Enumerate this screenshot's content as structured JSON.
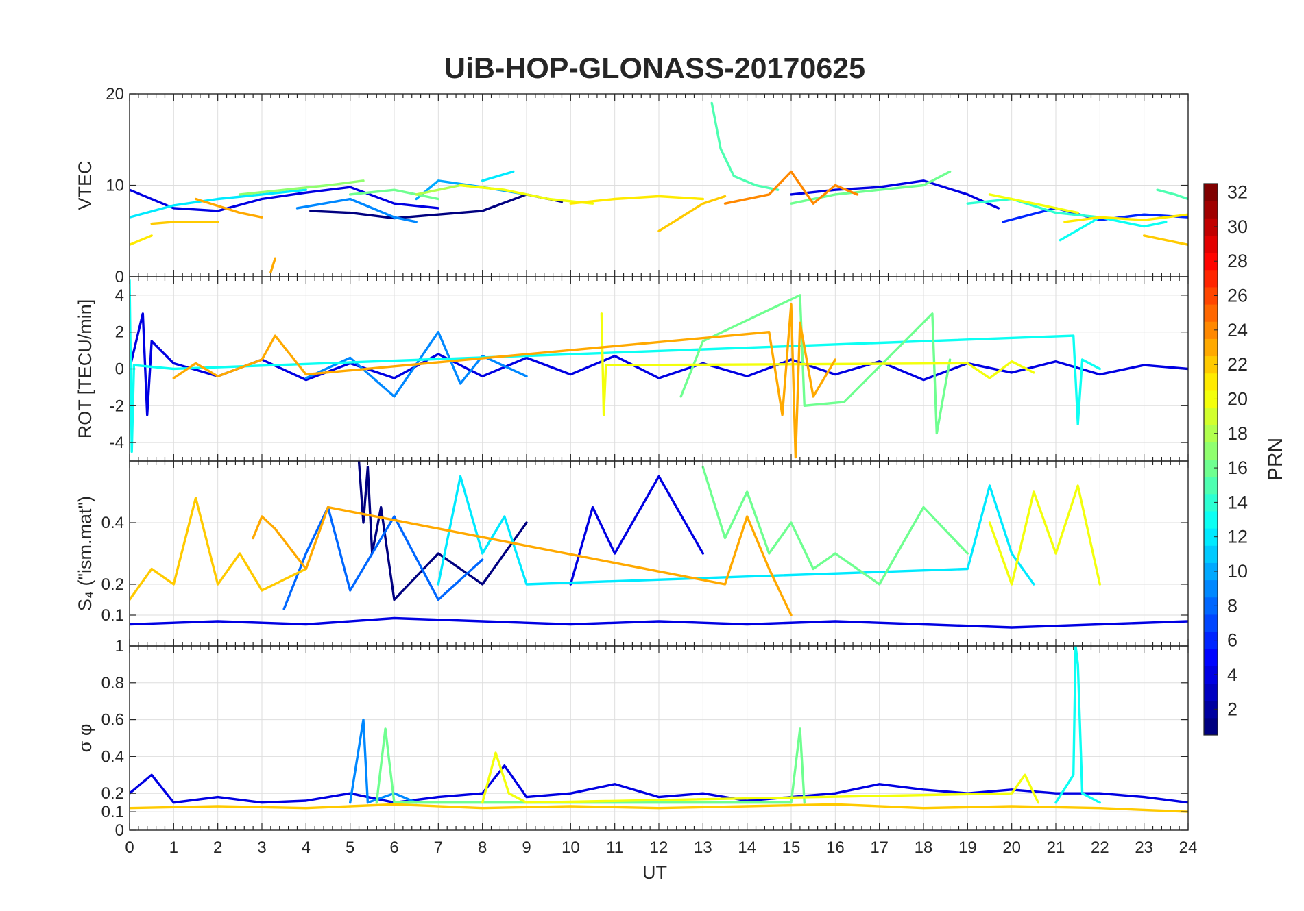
{
  "chart_data": {
    "type": "line",
    "title": "UiB-HOP-GLONASS-20170625",
    "xlabel": "UT",
    "xlim": [
      0,
      24
    ],
    "xticks": [
      0,
      1,
      2,
      3,
      4,
      5,
      6,
      7,
      8,
      9,
      10,
      11,
      12,
      13,
      14,
      15,
      16,
      17,
      18,
      19,
      20,
      21,
      22,
      23,
      24
    ],
    "colorbar": {
      "label": "PRN",
      "colormap": "jet",
      "range": [
        1,
        32
      ],
      "ticks": [
        2,
        4,
        6,
        8,
        10,
        12,
        14,
        16,
        18,
        20,
        22,
        24,
        26,
        28,
        30,
        32
      ]
    },
    "panels": [
      {
        "id": "vtec",
        "ylabel": "VTEC",
        "ylim": [
          0,
          20
        ],
        "yticks": [
          0,
          10,
          20
        ],
        "series": [
          {
            "prn": 1,
            "x": [
              4.1,
              5,
              6,
              7,
              8,
              9,
              9.8
            ],
            "y": [
              7.2,
              7.0,
              6.4,
              6.8,
              7.2,
              9.0,
              8.2
            ]
          },
          {
            "prn": 4,
            "x": [
              0,
              1,
              2,
              3,
              4,
              5,
              6,
              7
            ],
            "y": [
              9.5,
              7.5,
              7.2,
              8.5,
              9.2,
              9.8,
              8.0,
              7.5
            ]
          },
          {
            "prn": 4,
            "x": [
              15,
              16,
              17,
              18,
              19,
              19.7
            ],
            "y": [
              9.0,
              9.5,
              9.8,
              10.5,
              9.0,
              7.5
            ]
          },
          {
            "prn": 6,
            "x": [
              19.8,
              21,
              22,
              23,
              24
            ],
            "y": [
              6.0,
              7.5,
              6.2,
              6.8,
              6.5
            ]
          },
          {
            "prn": 9,
            "x": [
              3.8,
              5,
              6,
              6.5
            ],
            "y": [
              7.5,
              8.5,
              6.5,
              6.0
            ]
          },
          {
            "prn": 10,
            "x": [
              6.5,
              7,
              8,
              9
            ],
            "y": [
              8.5,
              10.5,
              9.8,
              9.0
            ]
          },
          {
            "prn": 12,
            "x": [
              0,
              1,
              2,
              3,
              4
            ],
            "y": [
              6.5,
              7.8,
              8.5,
              9.0,
              9.5
            ]
          },
          {
            "prn": 12,
            "x": [
              8,
              8.7
            ],
            "y": [
              10.5,
              11.5
            ]
          },
          {
            "prn": 13,
            "x": [
              21.1,
              22,
              23,
              23.5
            ],
            "y": [
              4.0,
              6.5,
              5.5,
              6.0
            ]
          },
          {
            "prn": 14,
            "x": [
              19.0,
              20,
              21,
              22
            ],
            "y": [
              8.0,
              8.5,
              7.0,
              6.5
            ]
          },
          {
            "prn": 15,
            "x": [
              13.2,
              13.4,
              13.7,
              14.2,
              14.7
            ],
            "y": [
              19.0,
              14.0,
              11.0,
              10.0,
              9.5
            ]
          },
          {
            "prn": 15,
            "x": [
              23.3,
              23.7,
              24
            ],
            "y": [
              9.5,
              9.0,
              8.5
            ]
          },
          {
            "prn": 16,
            "x": [
              5,
              6,
              7
            ],
            "y": [
              9.0,
              9.5,
              8.5
            ]
          },
          {
            "prn": 16,
            "x": [
              15,
              16,
              17,
              18,
              18.6
            ],
            "y": [
              8.0,
              9.0,
              9.5,
              10.0,
              11.5
            ]
          },
          {
            "prn": 17,
            "x": [
              2.5,
              3.5,
              4.5,
              5.3
            ],
            "y": [
              9.0,
              9.5,
              10.0,
              10.5
            ]
          },
          {
            "prn": 18,
            "x": [
              6.5,
              7.5,
              8.5
            ],
            "y": [
              9.0,
              10.0,
              9.5
            ]
          },
          {
            "prn": 20,
            "x": [
              7.5,
              8.5,
              9.5,
              10.5
            ],
            "y": [
              10.0,
              9.5,
              8.5,
              8.0
            ]
          },
          {
            "prn": 20,
            "x": [
              19.5,
              20.5,
              21.5
            ],
            "y": [
              9.0,
              8.0,
              7.0
            ]
          },
          {
            "prn": 21,
            "x": [
              0,
              0.5
            ],
            "y": [
              3.5,
              4.5
            ]
          },
          {
            "prn": 21,
            "x": [
              10,
              11,
              12,
              13
            ],
            "y": [
              8.0,
              8.5,
              8.8,
              8.5
            ]
          },
          {
            "prn": 21,
            "x": [
              21.2,
              22,
              23,
              24
            ],
            "y": [
              6.0,
              6.5,
              6.2,
              6.8
            ]
          },
          {
            "prn": 22,
            "x": [
              0.5,
              1,
              2
            ],
            "y": [
              5.8,
              6.0,
              6.0
            ]
          },
          {
            "prn": 22,
            "x": [
              12,
              13,
              13.5
            ],
            "y": [
              5.0,
              8.0,
              8.8
            ]
          },
          {
            "prn": 22,
            "x": [
              23,
              24
            ],
            "y": [
              4.5,
              3.5
            ]
          },
          {
            "prn": 23,
            "x": [
              3.2,
              3.3
            ],
            "y": [
              0.5,
              2.0
            ]
          },
          {
            "prn": 23,
            "x": [
              1.5,
              2.5,
              3
            ],
            "y": [
              8.5,
              7.0,
              6.5
            ]
          },
          {
            "prn": 24,
            "x": [
              13.5,
              14.5,
              15,
              15.5,
              16,
              16.5
            ],
            "y": [
              8.0,
              9.0,
              11.5,
              8.0,
              10.0,
              9.0
            ]
          }
        ]
      },
      {
        "id": "rot",
        "ylabel": "ROT [TECU/min]",
        "ylim": [
          -5,
          5
        ],
        "yticks": [
          -4,
          -2,
          0,
          2,
          4
        ],
        "series": [
          {
            "prn": 4,
            "x": [
              0,
              0.3,
              0.4,
              0.5,
              1,
              2,
              3,
              4,
              5,
              6,
              7,
              8,
              9,
              10,
              11,
              12,
              13,
              14,
              15,
              16,
              17,
              18,
              19,
              20,
              21,
              22,
              23,
              24
            ],
            "y": [
              0,
              3.0,
              -2.5,
              1.5,
              0.3,
              -0.4,
              0.5,
              -0.6,
              0.3,
              -0.5,
              0.8,
              -0.4,
              0.6,
              -0.3,
              0.7,
              -0.5,
              0.3,
              -0.4,
              0.5,
              -0.3,
              0.4,
              -0.6,
              0.3,
              -0.2,
              0.4,
              -0.3,
              0.2,
              0
            ]
          },
          {
            "prn": 9,
            "x": [
              4,
              5,
              6,
              7,
              7.5,
              8,
              9
            ],
            "y": [
              -0.5,
              0.6,
              -1.5,
              2.0,
              -0.8,
              0.7,
              -0.4
            ]
          },
          {
            "prn": 13,
            "x": [
              0,
              0.05,
              0.1,
              1,
              21.4,
              21.5,
              21.6,
              22
            ],
            "y": [
              4.8,
              -4.5,
              0.2,
              0,
              1.8,
              -3.0,
              0.5,
              0
            ]
          },
          {
            "prn": 16,
            "x": [
              12.5,
              13,
              15.2,
              15.3,
              16.2,
              18.2,
              18.3,
              18.6
            ],
            "y": [
              -1.5,
              1.5,
              4.0,
              -2.0,
              -1.8,
              3.0,
              -3.5,
              0.5
            ]
          },
          {
            "prn": 20,
            "x": [
              10.7,
              10.75,
              10.8,
              19,
              19.5,
              20,
              20.5
            ],
            "y": [
              3.0,
              -2.5,
              0.2,
              0.3,
              -0.5,
              0.4,
              -0.2
            ]
          },
          {
            "prn": 23,
            "x": [
              1,
              1.5,
              2,
              3,
              3.3,
              4,
              14.5,
              14.8,
              15,
              15.1,
              15.2,
              15.5,
              16
            ],
            "y": [
              -0.5,
              0.3,
              -0.4,
              0.5,
              1.8,
              -0.3,
              2.0,
              -2.5,
              3.5,
              -4.8,
              2.5,
              -1.5,
              0.5
            ]
          }
        ]
      },
      {
        "id": "s4",
        "ylabel": "S₄ (\"ism.mat\")",
        "ylim": [
          0,
          0.6
        ],
        "yticks": [
          0.1,
          0.2,
          0.4
        ],
        "series": [
          {
            "prn": 1,
            "x": [
              5.2,
              5.3,
              5.4,
              5.5,
              5.7,
              6,
              7,
              8,
              9
            ],
            "y": [
              0.6,
              0.4,
              0.58,
              0.3,
              0.45,
              0.15,
              0.3,
              0.2,
              0.4
            ]
          },
          {
            "prn": 4,
            "x": [
              10,
              10.5,
              11,
              12,
              13
            ],
            "y": [
              0.2,
              0.45,
              0.3,
              0.55,
              0.3
            ]
          },
          {
            "prn": 8,
            "x": [
              3.5,
              4,
              4.5,
              5,
              6,
              7,
              8
            ],
            "y": [
              0.12,
              0.3,
              0.45,
              0.18,
              0.42,
              0.15,
              0.28
            ]
          },
          {
            "prn": 12,
            "x": [
              7,
              7.5,
              8,
              8.5,
              9,
              19,
              19.5,
              20,
              20.5
            ],
            "y": [
              0.2,
              0.55,
              0.3,
              0.42,
              0.2,
              0.25,
              0.52,
              0.3,
              0.2
            ]
          },
          {
            "prn": 16,
            "x": [
              13,
              13.5,
              14,
              14.5,
              15,
              15.5,
              16,
              17,
              18,
              19
            ],
            "y": [
              0.58,
              0.35,
              0.5,
              0.3,
              0.4,
              0.25,
              0.3,
              0.2,
              0.45,
              0.3
            ]
          },
          {
            "prn": 20,
            "x": [
              19.5,
              20,
              20.5,
              21,
              21.5,
              22
            ],
            "y": [
              0.4,
              0.2,
              0.5,
              0.3,
              0.52,
              0.2
            ]
          },
          {
            "prn": 22,
            "x": [
              0,
              0.5,
              1,
              1.5,
              2,
              2.5,
              3,
              4
            ],
            "y": [
              0.15,
              0.25,
              0.2,
              0.48,
              0.2,
              0.3,
              0.18,
              0.25
            ]
          },
          {
            "prn": 23,
            "x": [
              2.8,
              3,
              3.3,
              4,
              4.5,
              13.5,
              14,
              14.5,
              15
            ],
            "y": [
              0.35,
              0.42,
              0.38,
              0.25,
              0.45,
              0.2,
              0.42,
              0.25,
              0.1
            ]
          },
          {
            "prn": 4,
            "x": [
              0,
              2,
              4,
              6,
              8,
              10,
              12,
              14,
              16,
              18,
              20,
              22,
              24
            ],
            "y": [
              0.07,
              0.08,
              0.07,
              0.09,
              0.08,
              0.07,
              0.08,
              0.07,
              0.08,
              0.07,
              0.06,
              0.07,
              0.08
            ]
          }
        ]
      },
      {
        "id": "sigma_phi",
        "ylabel": "σ φ",
        "ylim": [
          0,
          1
        ],
        "yticks": [
          0,
          0.1,
          0.2,
          0.4,
          0.6,
          0.8,
          1
        ],
        "series": [
          {
            "prn": 4,
            "x": [
              0,
              0.5,
              1,
              2,
              3,
              4,
              5,
              6,
              7,
              8,
              8.5,
              9,
              10,
              11,
              12,
              13,
              14,
              15,
              16,
              17,
              18,
              19,
              20,
              21,
              22,
              23,
              24
            ],
            "y": [
              0.2,
              0.3,
              0.15,
              0.18,
              0.15,
              0.16,
              0.2,
              0.15,
              0.18,
              0.2,
              0.35,
              0.18,
              0.2,
              0.25,
              0.18,
              0.2,
              0.16,
              0.18,
              0.2,
              0.25,
              0.22,
              0.2,
              0.22,
              0.2,
              0.2,
              0.18,
              0.15
            ]
          },
          {
            "prn": 9,
            "x": [
              5,
              5.3,
              5.4,
              6,
              6.5
            ],
            "y": [
              0.15,
              0.6,
              0.15,
              0.2,
              0.15
            ]
          },
          {
            "prn": 13,
            "x": [
              21,
              21.4,
              21.45,
              21.5,
              21.6,
              22
            ],
            "y": [
              0.15,
              0.3,
              1.0,
              0.9,
              0.2,
              0.15
            ]
          },
          {
            "prn": 16,
            "x": [
              5.6,
              5.8,
              6,
              15,
              15.2,
              15.3
            ],
            "y": [
              0.15,
              0.55,
              0.15,
              0.15,
              0.55,
              0.15
            ]
          },
          {
            "prn": 20,
            "x": [
              8,
              8.3,
              8.6,
              9,
              20,
              20.3,
              20.6
            ],
            "y": [
              0.15,
              0.42,
              0.2,
              0.15,
              0.2,
              0.3,
              0.15
            ]
          },
          {
            "prn": 22,
            "x": [
              0,
              2,
              4,
              6,
              8,
              10,
              12,
              14,
              16,
              18,
              20,
              22,
              24
            ],
            "y": [
              0.12,
              0.13,
              0.12,
              0.14,
              0.12,
              0.13,
              0.12,
              0.13,
              0.14,
              0.12,
              0.13,
              0.12,
              0.1
            ]
          }
        ]
      }
    ]
  }
}
